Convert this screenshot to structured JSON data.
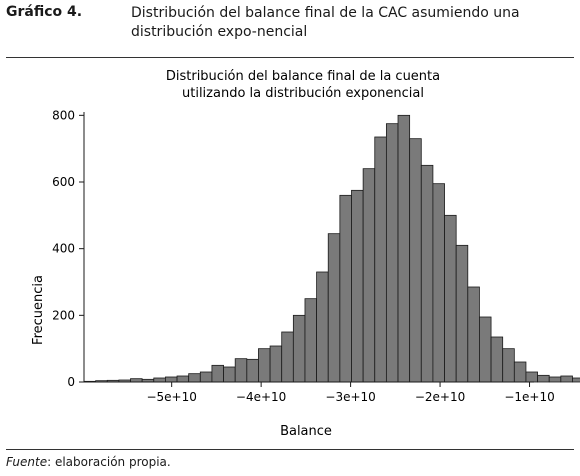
{
  "figure": {
    "label": "Gráfico 4.",
    "caption": "Distribución del balance final de la CAC asumiendo una distribución expo-nencial"
  },
  "source": {
    "label": "Fuente",
    "text": ": elaboración propia."
  },
  "chart_data": {
    "type": "bar",
    "title": "Distribución del balance final de la cuenta utilizando la distribución exponencial",
    "title_lines": [
      "Distribución del balance final de la cuenta",
      "utilizando la distribución exponencial"
    ],
    "xlabel": "Balance",
    "ylabel": "Frecuencia",
    "xlim": [
      -59800000000.0,
      -9500000000.0
    ],
    "ylim": [
      0,
      810
    ],
    "bin_start": -59800000000.0,
    "bin_width": 1300000000.0,
    "values": [
      2,
      4,
      5,
      6,
      10,
      8,
      12,
      15,
      18,
      25,
      30,
      50,
      45,
      70,
      68,
      100,
      108,
      150,
      200,
      250,
      330,
      445,
      560,
      575,
      640,
      735,
      775,
      800,
      730,
      650,
      595,
      500,
      410,
      285,
      195,
      135,
      100,
      60,
      30,
      20,
      15,
      18,
      12,
      8,
      10
    ],
    "x_ticks": [
      -50000000000.0,
      -40000000000.0,
      -30000000000.0,
      -20000000000.0,
      -10000000000.0
    ],
    "x_tick_labels": [
      "−5e+10",
      "−4e+10",
      "−3e+10",
      "−2e+10",
      "−1e+10"
    ],
    "y_ticks": [
      0,
      200,
      400,
      600,
      800
    ],
    "y_tick_labels": [
      "0",
      "200",
      "400",
      "600",
      "800"
    ],
    "bar_color": "#7a7a7a",
    "bar_edge_color": "#1a1a1a",
    "grid": false
  }
}
